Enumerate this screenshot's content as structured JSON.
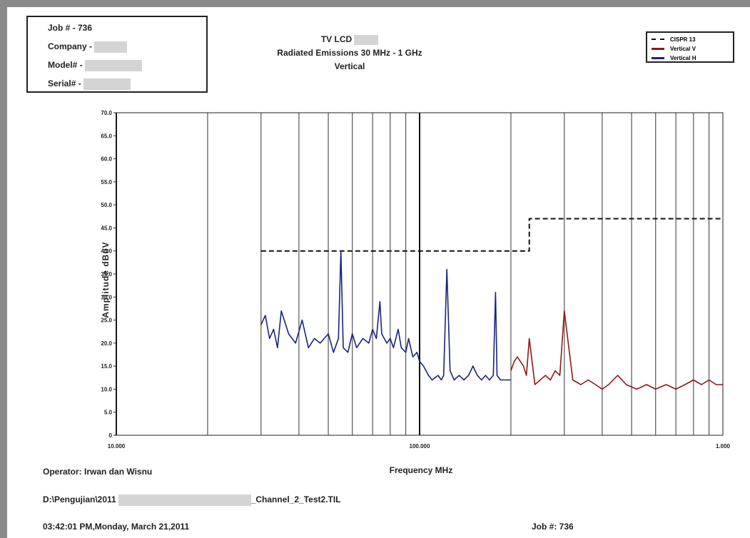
{
  "header": {
    "job_line": "Job # - 736",
    "company_label": "Company -",
    "model_label": "Model# -",
    "serial_label": "Serial# -"
  },
  "title": {
    "line1": "TV LCD",
    "line2": "Radiated Emissions 30 MHz - 1 GHz",
    "line3": "Vertical"
  },
  "footer": {
    "operator": "Operator: Irwan dan Wisnu",
    "path_prefix": "D:\\Pengujian\\2011",
    "path_suffix": "_Channel_2_Test2.TIL",
    "timestamp": "03:42:01 PM,Monday, March 21,2011",
    "job": "Job #: 736"
  },
  "chart_data": {
    "type": "line",
    "xlabel": "Frequency MHz",
    "ylabel": "Amplitude dBuV",
    "x_scale": "log",
    "xlim": [
      10,
      1000
    ],
    "ylim": [
      0,
      70
    ],
    "x_tick_labels": [
      "10.000",
      "100.000",
      "1.000"
    ],
    "y_ticks": [
      0,
      5,
      10,
      15,
      20,
      25,
      30,
      35,
      40,
      45,
      50,
      55,
      60,
      65,
      70
    ],
    "y_tick_labels": [
      "0",
      "5.0",
      "10.0",
      "15.0",
      "20.0",
      "25.0",
      "30.0",
      "35.0",
      "40.0",
      "45.0",
      "50.0",
      "55.0",
      "60.0",
      "65.0",
      "70.0"
    ],
    "grid": true,
    "legend_position": "top-right",
    "series": [
      {
        "name": "CISPR 13",
        "color": "#111111",
        "style": "dashed",
        "x": [
          30,
          230,
          230,
          1000
        ],
        "y": [
          40,
          40,
          47,
          47
        ]
      },
      {
        "name": "Vertical H",
        "color": "#1a237e",
        "style": "solid",
        "x": [
          30,
          31,
          32,
          33,
          34,
          35,
          37,
          39,
          41,
          43,
          45,
          47,
          50,
          52,
          54,
          55,
          56,
          58,
          60,
          62,
          65,
          68,
          70,
          72,
          74,
          75,
          78,
          80,
          82,
          85,
          87,
          90,
          92,
          95,
          98,
          100,
          103,
          107,
          110,
          115,
          118,
          120,
          123,
          126,
          130,
          135,
          140,
          145,
          150,
          155,
          160,
          165,
          170,
          175,
          178,
          180,
          185,
          190,
          200
        ],
        "y": [
          24,
          26,
          21,
          23,
          19,
          27,
          22,
          20,
          25,
          19,
          21,
          20,
          22,
          18,
          21,
          40,
          19,
          18,
          22,
          19,
          21,
          20,
          23,
          21,
          29,
          22,
          20,
          21,
          19,
          23,
          19,
          18,
          21,
          17,
          18,
          16,
          15,
          13,
          12,
          13,
          12,
          13,
          36,
          14,
          12,
          13,
          12,
          13,
          15,
          13,
          12,
          13,
          12,
          13,
          31,
          13,
          12,
          12,
          12
        ]
      },
      {
        "name": "Vertical V",
        "color": "#8b1a1a",
        "style": "solid",
        "x": [
          200,
          205,
          210,
          215,
          220,
          225,
          230,
          240,
          250,
          260,
          270,
          280,
          290,
          300,
          320,
          340,
          360,
          380,
          400,
          420,
          450,
          480,
          520,
          560,
          600,
          650,
          700,
          750,
          800,
          850,
          900,
          950,
          1000
        ],
        "y": [
          14,
          16,
          17,
          16,
          15,
          13,
          21,
          11,
          12,
          13,
          12,
          14,
          13,
          27,
          12,
          11,
          12,
          11,
          10,
          11,
          13,
          11,
          10,
          11,
          10,
          11,
          10,
          11,
          12,
          11,
          12,
          11,
          11
        ]
      }
    ]
  }
}
